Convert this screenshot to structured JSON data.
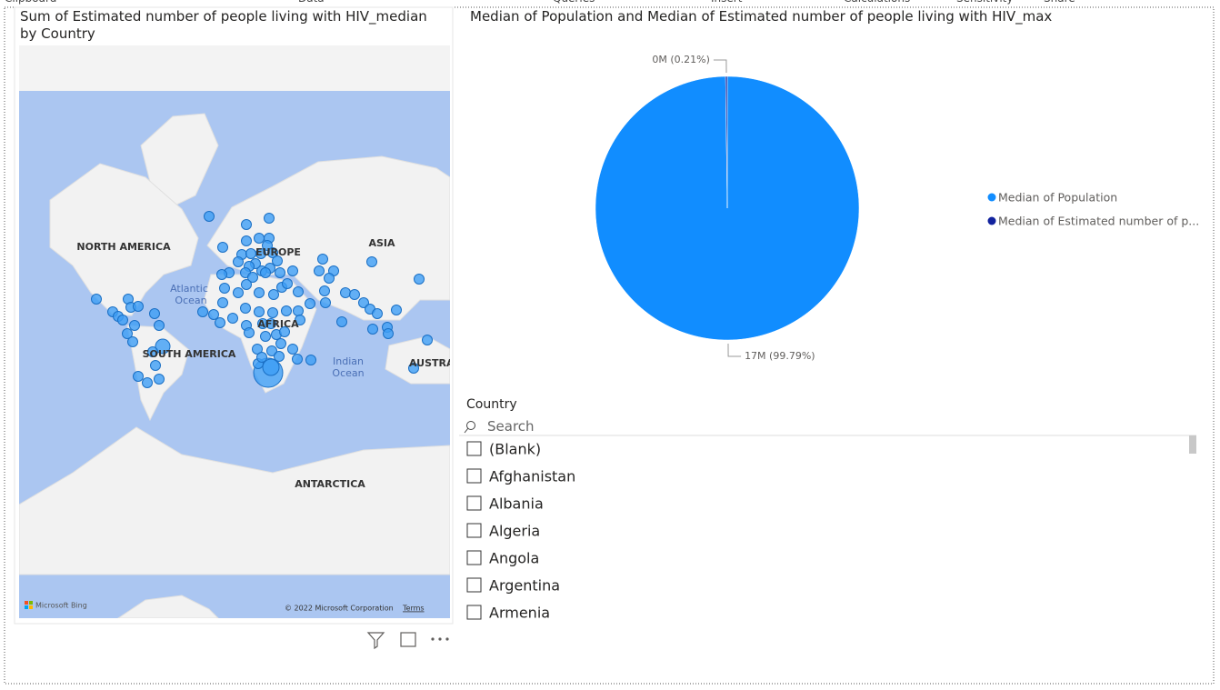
{
  "ribbon_tabs": [
    "Clipboard",
    "Data",
    "Queries",
    "Insert",
    "Calculations",
    "Sensitivity",
    "Share"
  ],
  "map": {
    "title": "Sum of Estimated number of people living with HIV_median by Country",
    "region_labels": [
      "NORTH AMERICA",
      "EUROPE",
      "ASIA",
      "Atlantic",
      "Ocean",
      "AFRICA",
      "SOUTH AMERICA",
      "Indian",
      "Ocean",
      "AUSTRA",
      "ANTARCTICA"
    ],
    "attribution": "Microsoft Bing",
    "copyright": "© 2022 Microsoft Corporation",
    "terms": "Terms"
  },
  "chart_data": {
    "type": "pie",
    "title": "Median of Population and Median of Estimated number of people living with HIV_max",
    "categories": [
      "Median of Population",
      "Median of Estimated number of p..."
    ],
    "values": [
      99.79,
      0.21
    ],
    "value_labels": [
      "17M (99.79%)",
      "0M (0.21%)"
    ],
    "colors": [
      "#118dff",
      "#12239e"
    ],
    "legend": "right"
  },
  "slicer": {
    "title": "Country",
    "search": "Search",
    "items": [
      "(Blank)",
      "Afghanistan",
      "Albania",
      "Algeria",
      "Angola",
      "Argentina",
      "Armenia"
    ]
  }
}
